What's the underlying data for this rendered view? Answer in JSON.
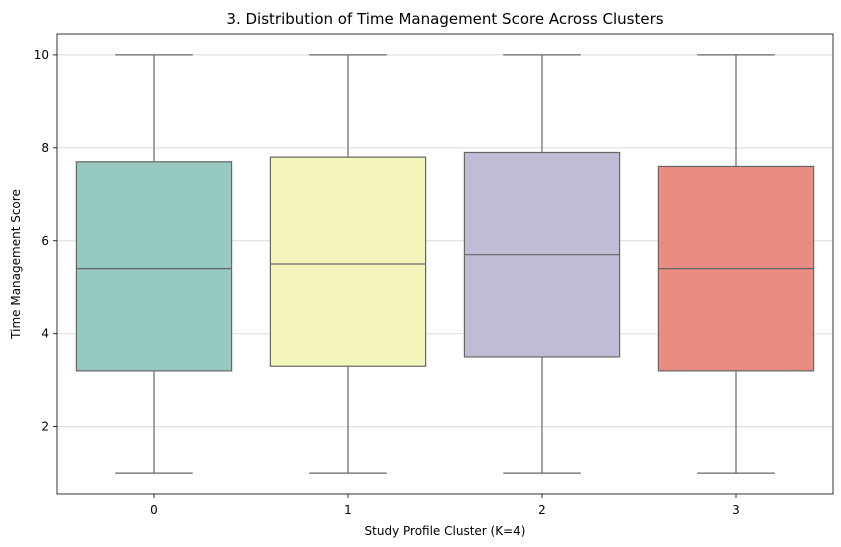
{
  "chart_data": {
    "type": "box",
    "title": "3. Distribution of Time Management Score Across Clusters",
    "xlabel": "Study Profile Cluster (K=4)",
    "ylabel": "Time Management Score",
    "ylim": [
      0.55,
      10.45
    ],
    "yticks": [
      2,
      4,
      6,
      8,
      10
    ],
    "grid": "horizontal",
    "categories": [
      "0",
      "1",
      "2",
      "3"
    ],
    "boxes": [
      {
        "category": "0",
        "min": 1,
        "q1": 3.2,
        "median": 5.4,
        "q3": 7.7,
        "max": 10,
        "color": "#96c9c1"
      },
      {
        "category": "1",
        "min": 1,
        "q1": 3.3,
        "median": 5.5,
        "q3": 7.8,
        "max": 10,
        "color": "#f4f5bb"
      },
      {
        "category": "2",
        "min": 1,
        "q1": 3.5,
        "median": 5.7,
        "q3": 7.9,
        "max": 10,
        "color": "#c1bcd6"
      },
      {
        "category": "3",
        "min": 1,
        "q1": 3.2,
        "median": 5.4,
        "q3": 7.6,
        "max": 10,
        "color": "#e98c82"
      }
    ]
  }
}
